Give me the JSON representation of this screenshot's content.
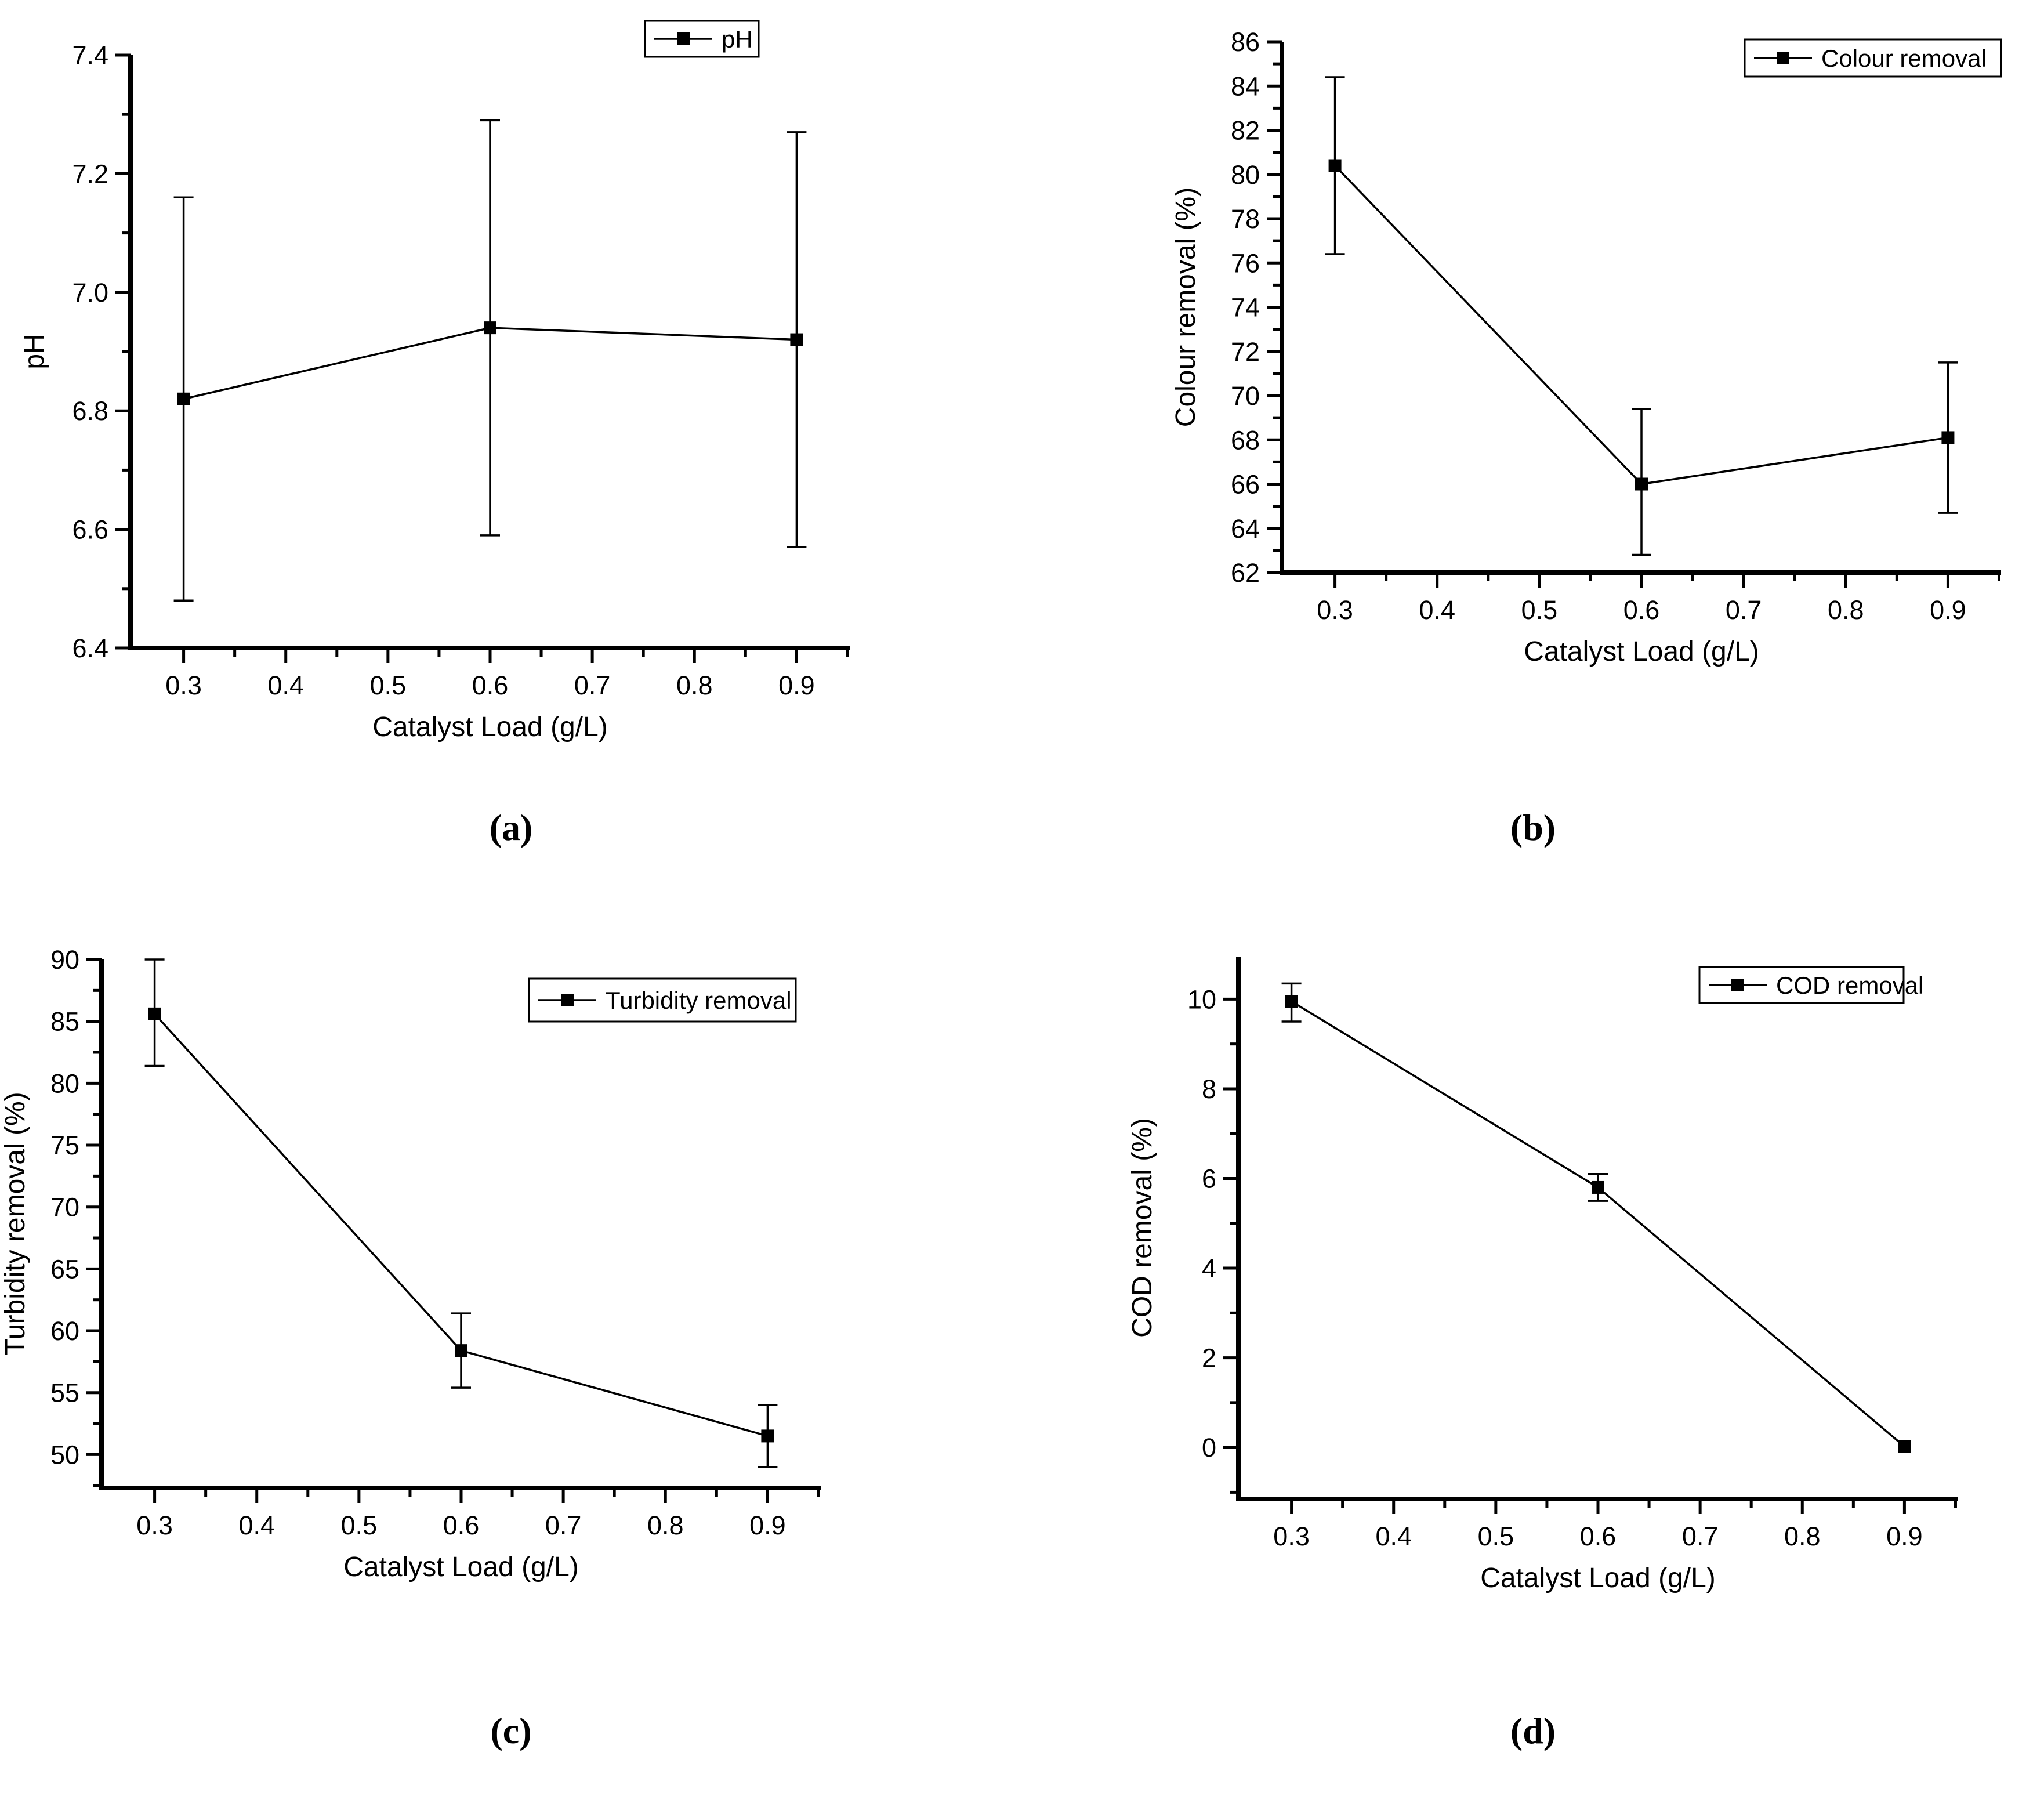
{
  "figure": {
    "background_color": "#ffffff",
    "ink_color": "#000000",
    "marker_style": "filled-square",
    "x_tick_decimals": 1
  },
  "chart_data": [
    {
      "id": "a",
      "caption": "(a)",
      "type": "line",
      "legend": "pH",
      "legend_position": "top-right",
      "xlabel": "Catalyst Load (g/L)",
      "ylabel": "pH",
      "x": [
        0.3,
        0.6,
        0.9
      ],
      "y": [
        6.82,
        6.94,
        6.92
      ],
      "y_err_plus": [
        0.34,
        0.35,
        0.35
      ],
      "y_err_minus": [
        0.34,
        0.35,
        0.35
      ],
      "xlim": [
        0.248,
        0.952
      ],
      "ylim": [
        6.4,
        7.4
      ],
      "xticks": [
        0.3,
        0.4,
        0.5,
        0.6,
        0.7,
        0.8,
        0.9
      ],
      "yticks": [
        6.4,
        6.6,
        6.8,
        7.0,
        7.2,
        7.4
      ],
      "xticks_minor": [
        0.35,
        0.45,
        0.55,
        0.65,
        0.75,
        0.85,
        0.95
      ],
      "yticks_minor": [
        6.5,
        6.7,
        6.9,
        7.1,
        7.3
      ],
      "ytick_decimals": 1,
      "grid": false
    },
    {
      "id": "b",
      "caption": "(b)",
      "type": "line",
      "legend": "Colour removal",
      "legend_position": "top-right",
      "xlabel": "Catalyst Load (g/L)",
      "ylabel": "Colour removal (%)",
      "x": [
        0.3,
        0.6,
        0.9
      ],
      "y": [
        80.4,
        66.0,
        68.1
      ],
      "y_err_plus": [
        4.0,
        3.4,
        3.4
      ],
      "y_err_minus": [
        4.0,
        3.2,
        3.4
      ],
      "xlim": [
        0.248,
        0.952
      ],
      "ylim": [
        62,
        86
      ],
      "xticks": [
        0.3,
        0.4,
        0.5,
        0.6,
        0.7,
        0.8,
        0.9
      ],
      "yticks": [
        62,
        64,
        66,
        68,
        70,
        72,
        74,
        76,
        78,
        80,
        82,
        84,
        86
      ],
      "xticks_minor": [
        0.35,
        0.45,
        0.55,
        0.65,
        0.75,
        0.85,
        0.95
      ],
      "yticks_minor": [
        63,
        65,
        67,
        69,
        71,
        73,
        75,
        77,
        79,
        81,
        83,
        85
      ],
      "ytick_decimals": 0,
      "grid": false
    },
    {
      "id": "c",
      "caption": "(c)",
      "type": "line",
      "legend": "Turbidity removal",
      "legend_position": "top-right",
      "xlabel": "Catalyst Load (g/L)",
      "ylabel": "Turbidity removal (%)",
      "x": [
        0.3,
        0.6,
        0.9
      ],
      "y": [
        85.6,
        58.4,
        51.5
      ],
      "y_err_plus": [
        4.4,
        3.0,
        2.5
      ],
      "y_err_minus": [
        4.2,
        3.0,
        2.5
      ],
      "xlim": [
        0.248,
        0.952
      ],
      "ylim": [
        47.3,
        90
      ],
      "xticks": [
        0.3,
        0.4,
        0.5,
        0.6,
        0.7,
        0.8,
        0.9
      ],
      "yticks": [
        50,
        55,
        60,
        65,
        70,
        75,
        80,
        85,
        90
      ],
      "xticks_minor": [
        0.35,
        0.45,
        0.55,
        0.65,
        0.75,
        0.85,
        0.95
      ],
      "yticks_minor": [
        47.5,
        52.5,
        57.5,
        62.5,
        67.5,
        72.5,
        77.5,
        82.5,
        87.5
      ],
      "ytick_decimals": 0,
      "grid": false
    },
    {
      "id": "d",
      "caption": "(d)",
      "type": "line",
      "legend": "COD removal",
      "legend_position": "top-right",
      "xlabel": "Catalyst Load (g/L)",
      "ylabel": "COD removal (%)",
      "x": [
        0.3,
        0.6,
        0.9
      ],
      "y": [
        9.95,
        5.8,
        0.02
      ],
      "y_err_plus": [
        0.4,
        0.3,
        0
      ],
      "y_err_minus": [
        0.45,
        0.3,
        0
      ],
      "xlim": [
        0.248,
        0.952
      ],
      "ylim": [
        -1.15,
        10.95
      ],
      "xticks": [
        0.3,
        0.4,
        0.5,
        0.6,
        0.7,
        0.8,
        0.9
      ],
      "yticks": [
        0,
        2,
        4,
        6,
        8,
        10
      ],
      "xticks_minor": [
        0.35,
        0.45,
        0.55,
        0.65,
        0.75,
        0.85,
        0.95
      ],
      "yticks_minor": [
        -1,
        1,
        3,
        5,
        7,
        9
      ],
      "ytick_decimals": 0,
      "grid": false
    }
  ]
}
